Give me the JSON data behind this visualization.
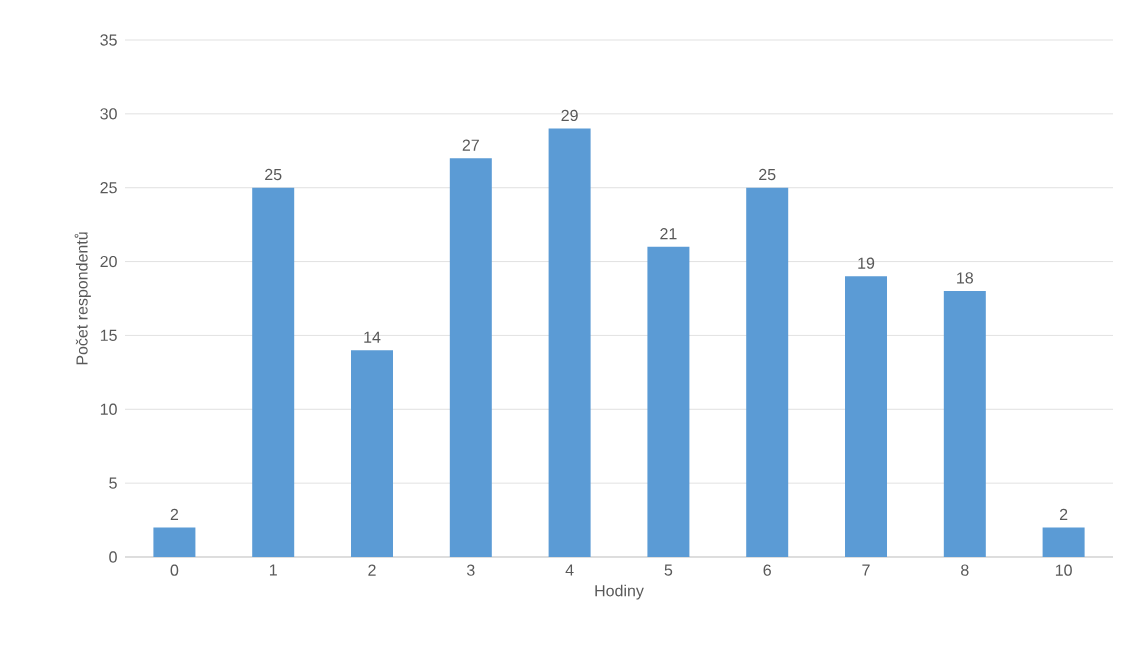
{
  "chart_data": {
    "type": "bar",
    "xlabel": "Hodiny",
    "ylabel": "Počet respondentů",
    "categories": [
      "0",
      "1",
      "2",
      "3",
      "4",
      "5",
      "6",
      "7",
      "8",
      "10"
    ],
    "values": [
      2,
      25,
      14,
      27,
      29,
      21,
      25,
      19,
      18,
      2
    ],
    "color": "#5b9bd5",
    "ylim": [
      0,
      35
    ],
    "yticks": [
      0,
      5,
      10,
      15,
      20,
      25,
      30,
      35
    ],
    "grid": "y",
    "data_labels": true
  }
}
